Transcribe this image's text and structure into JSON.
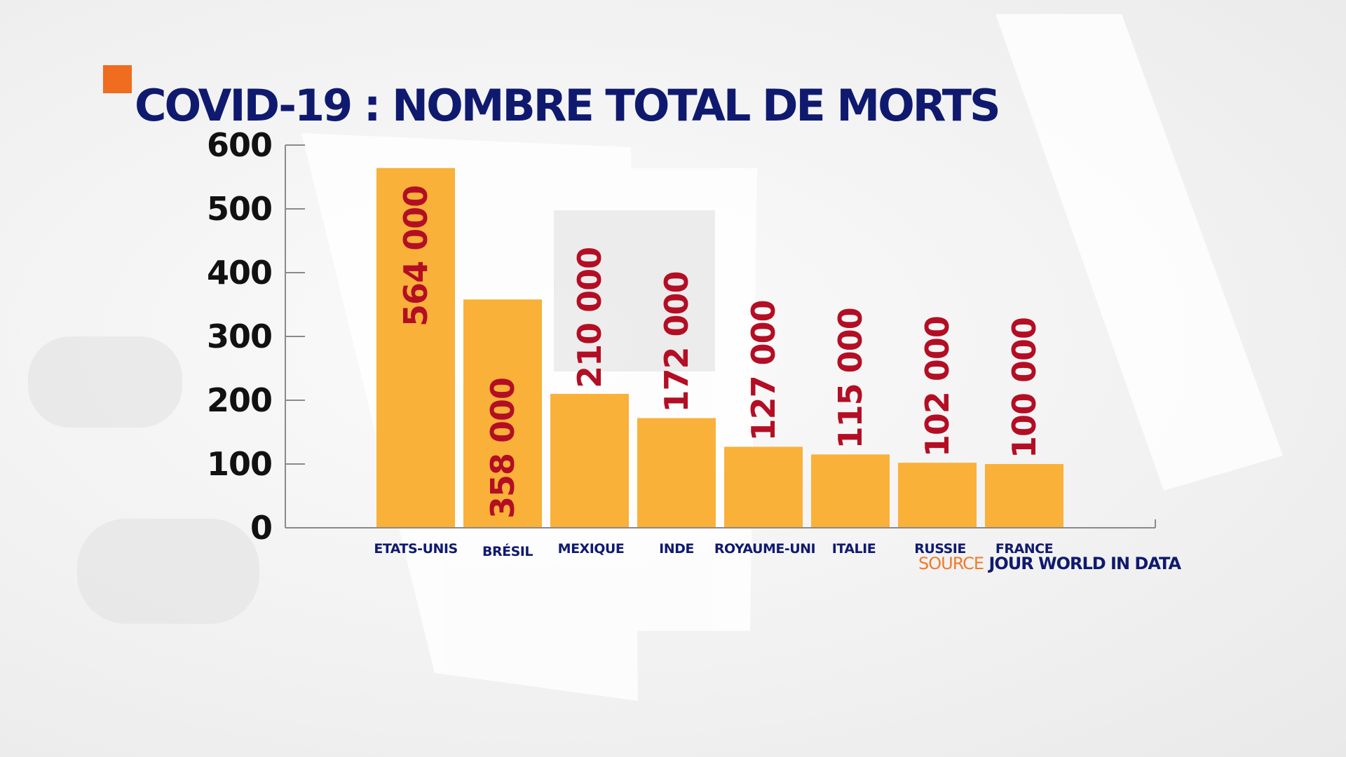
{
  "title": "COVID-19 : NOMBRE TOTAL DE MORTS",
  "source": {
    "key": "SOURCE",
    "value": "JOUR WORLD IN DATA"
  },
  "colors": {
    "bar": "#f9b13a",
    "data_label": "#b30e24",
    "title": "#0f1a6f",
    "accent": "#f06c1f",
    "source_key": "#f07a2a"
  },
  "chart_data": {
    "type": "bar",
    "title": "COVID-19 : NOMBRE TOTAL DE MORTS",
    "categories": [
      "ETATS-UNIS",
      "BRÉSIL",
      "MEXIQUE",
      "INDE",
      "ROYAUME-UNI",
      "ITALIE",
      "RUSSIE",
      "FRANCE"
    ],
    "values": [
      564,
      358,
      210,
      172,
      127,
      115,
      102,
      100
    ],
    "data_labels": [
      "564 000",
      "358 000",
      "210 000",
      "172 000",
      "127 000",
      "115 000",
      "102 000",
      "100 000"
    ],
    "yticks": [
      "0",
      "100",
      "200",
      "300",
      "400",
      "500",
      "600"
    ],
    "ylim": [
      0,
      600
    ],
    "xlabel": "",
    "ylabel": "",
    "grid": false,
    "legend": "none"
  }
}
